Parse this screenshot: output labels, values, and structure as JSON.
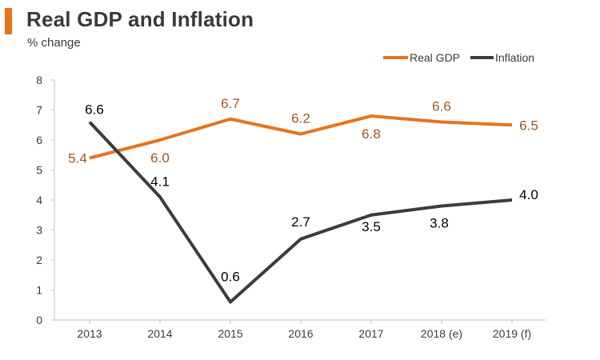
{
  "chart_data": {
    "type": "line",
    "title": "Real GDP and Inflation",
    "ylabel": "% change",
    "xlabel": "",
    "categories": [
      "2013",
      "2014",
      "2015",
      "2016",
      "2017",
      "2018 (e)",
      "2019 (f)"
    ],
    "ylim": [
      0,
      8
    ],
    "yticks": [
      "0",
      "1",
      "2",
      "3",
      "4",
      "5",
      "6",
      "7",
      "8"
    ],
    "legend_position": "top-right",
    "series": [
      {
        "name": "Real GDP",
        "color": "#e8731c",
        "label_color": "#a0561c",
        "values": [
          5.4,
          6.0,
          6.7,
          6.2,
          6.8,
          6.6,
          6.5
        ],
        "labels": [
          "5.4",
          "6.0",
          "6.7",
          "6.2",
          "6.8",
          "6.6",
          "6.5"
        ]
      },
      {
        "name": "Inflation",
        "color": "#3c3c3c",
        "label_color": "#000000",
        "values": [
          6.6,
          4.1,
          0.6,
          2.7,
          3.5,
          3.8,
          4.0
        ],
        "labels": [
          "6.6",
          "4.1",
          "0.6",
          "2.7",
          "3.5",
          "3.8",
          "4.0"
        ]
      }
    ]
  }
}
